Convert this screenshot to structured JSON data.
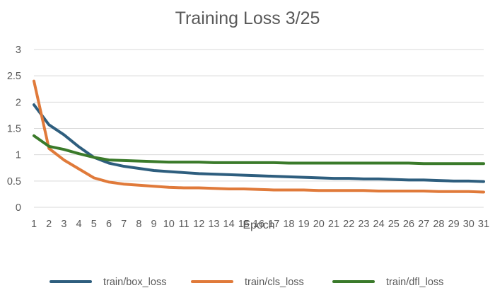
{
  "chart_data": {
    "type": "line",
    "title": "Training Loss 3/25",
    "xlabel": "Epoch",
    "ylabel": "",
    "ylim": [
      0,
      3
    ],
    "yticks": [
      "0",
      "0.5",
      "1",
      "1.5",
      "2",
      "2.5",
      "3"
    ],
    "x": [
      1,
      2,
      3,
      4,
      5,
      6,
      7,
      8,
      9,
      10,
      11,
      12,
      13,
      14,
      15,
      16,
      17,
      18,
      19,
      20,
      21,
      22,
      23,
      24,
      25,
      26,
      27,
      28,
      29,
      30,
      31
    ],
    "grid": true,
    "legend_position": "bottom",
    "series": [
      {
        "name": "train/box_loss",
        "color": "#2E5E7E",
        "values": [
          1.95,
          1.57,
          1.38,
          1.15,
          0.95,
          0.84,
          0.78,
          0.74,
          0.7,
          0.68,
          0.66,
          0.64,
          0.63,
          0.62,
          0.61,
          0.6,
          0.59,
          0.58,
          0.57,
          0.56,
          0.55,
          0.55,
          0.54,
          0.54,
          0.53,
          0.52,
          0.52,
          0.51,
          0.5,
          0.5,
          0.49
        ]
      },
      {
        "name": "train/cls_loss",
        "color": "#E07A3A",
        "values": [
          2.4,
          1.12,
          0.9,
          0.73,
          0.56,
          0.48,
          0.44,
          0.42,
          0.4,
          0.38,
          0.37,
          0.37,
          0.36,
          0.35,
          0.35,
          0.34,
          0.33,
          0.33,
          0.33,
          0.32,
          0.32,
          0.32,
          0.32,
          0.31,
          0.31,
          0.31,
          0.31,
          0.3,
          0.3,
          0.3,
          0.29
        ]
      },
      {
        "name": "train/dfl_loss",
        "color": "#3A7A2A",
        "values": [
          1.36,
          1.16,
          1.1,
          1.02,
          0.95,
          0.9,
          0.89,
          0.88,
          0.87,
          0.86,
          0.86,
          0.86,
          0.85,
          0.85,
          0.85,
          0.85,
          0.85,
          0.84,
          0.84,
          0.84,
          0.84,
          0.84,
          0.84,
          0.84,
          0.84,
          0.84,
          0.83,
          0.83,
          0.83,
          0.83,
          0.83
        ]
      }
    ]
  }
}
